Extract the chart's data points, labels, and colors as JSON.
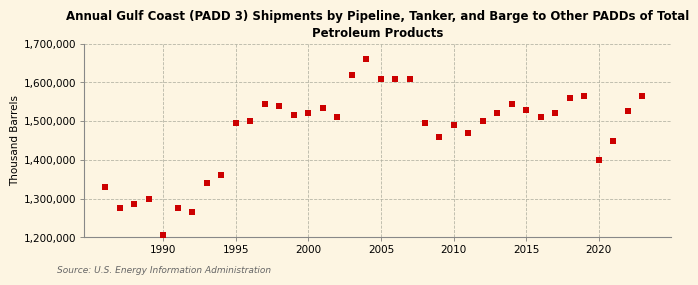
{
  "title": "Annual Gulf Coast (PADD 3) Shipments by Pipeline, Tanker, and Barge to Other PADDs of Total\nPetroleum Products",
  "ylabel": "Thousand Barrels",
  "source": "Source: U.S. Energy Information Administration",
  "background_color": "#fdf5e2",
  "plot_background_color": "#fdf5e2",
  "marker_color": "#cc0000",
  "xlim": [
    1984.5,
    2025
  ],
  "ylim": [
    1200000,
    1700000
  ],
  "yticks": [
    1200000,
    1300000,
    1400000,
    1500000,
    1600000,
    1700000
  ],
  "xticks": [
    1990,
    1995,
    2000,
    2005,
    2010,
    2015,
    2020
  ],
  "years": [
    1986,
    1987,
    1988,
    1989,
    1990,
    1991,
    1992,
    1993,
    1994,
    1995,
    1996,
    1997,
    1998,
    1999,
    2000,
    2001,
    2002,
    2003,
    2004,
    2005,
    2006,
    2007,
    2008,
    2009,
    2010,
    2011,
    2012,
    2013,
    2014,
    2015,
    2016,
    2017,
    2018,
    2019,
    2020,
    2021,
    2022,
    2023
  ],
  "values": [
    1330000,
    1275000,
    1285000,
    1300000,
    1205000,
    1275000,
    1265000,
    1340000,
    1360000,
    1495000,
    1500000,
    1545000,
    1540000,
    1515000,
    1520000,
    1535000,
    1510000,
    1620000,
    1660000,
    1610000,
    1610000,
    1610000,
    1495000,
    1460000,
    1490000,
    1470000,
    1500000,
    1520000,
    1545000,
    1530000,
    1510000,
    1520000,
    1560000,
    1565000,
    1400000,
    1450000,
    1525000,
    1565000
  ]
}
